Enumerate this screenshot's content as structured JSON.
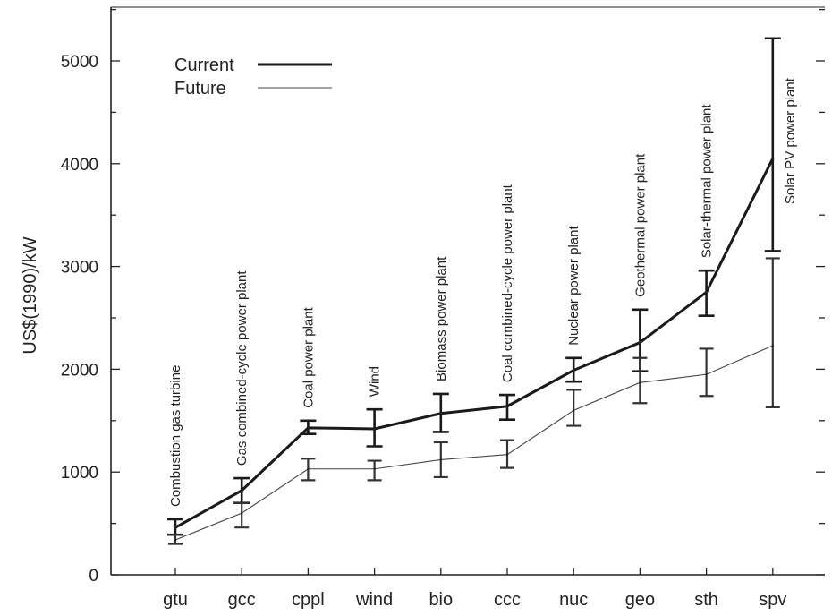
{
  "chart_data": {
    "type": "line",
    "ylabel": "US$(1990)/kW",
    "xlabel": "",
    "ylim": [
      0,
      5500
    ],
    "yticks": [
      0,
      1000,
      2000,
      3000,
      4000,
      5000
    ],
    "y_minor_step": 500,
    "categories": [
      "gtu",
      "gcc",
      "cppl",
      "wind",
      "bio",
      "ccc",
      "nuc",
      "geo",
      "sth",
      "spv"
    ],
    "annotations": [
      "Combustion gas turbine",
      "Gas combined-cycle power plant",
      "Coal power plant",
      "Wind",
      "Biomass power plant",
      "Coal combined-cycle power plant",
      "Nuclear power plant",
      "Geothermal power plant",
      "Solar-thermal power plant",
      "Solar PV power plant"
    ],
    "legend": {
      "position": "top-left"
    },
    "series": [
      {
        "name": "Current",
        "values": [
          460,
          820,
          1430,
          1420,
          1570,
          1640,
          1990,
          2260,
          2750,
          4050
        ],
        "low": [
          390,
          700,
          1370,
          1250,
          1390,
          1510,
          1880,
          1980,
          2520,
          3150
        ],
        "high": [
          540,
          940,
          1500,
          1610,
          1760,
          1750,
          2110,
          2580,
          2960,
          5220
        ]
      },
      {
        "name": "Future",
        "values": [
          340,
          600,
          1030,
          1030,
          1120,
          1170,
          1600,
          1870,
          1950,
          2230
        ],
        "low": [
          300,
          460,
          920,
          920,
          950,
          1040,
          1450,
          1670,
          1740,
          1630
        ],
        "high": [
          390,
          700,
          1130,
          1110,
          1290,
          1310,
          1800,
          2110,
          2200,
          3080
        ]
      }
    ]
  }
}
